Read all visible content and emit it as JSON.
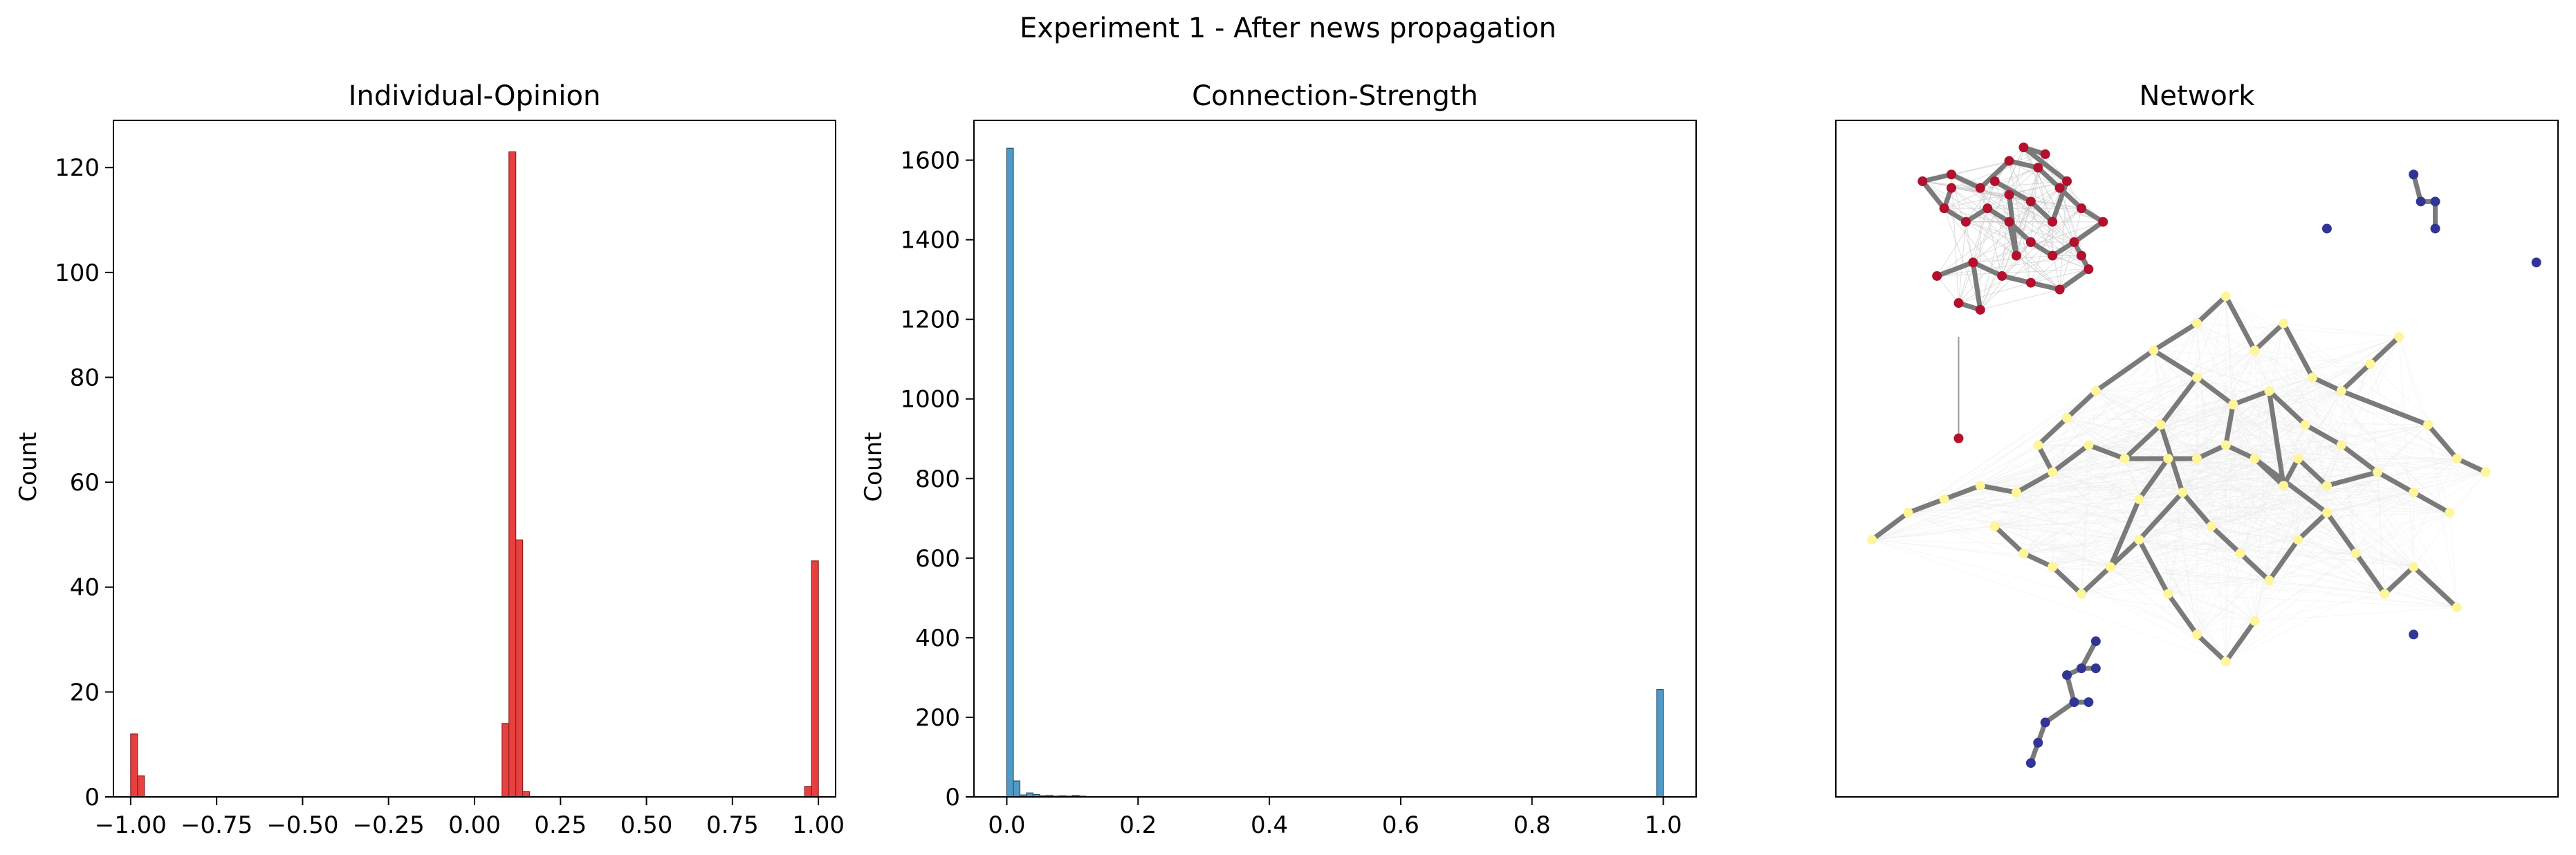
{
  "figure": {
    "suptitle": "Experiment 1 - After news propagation"
  },
  "chart_data": [
    {
      "type": "bar",
      "title": "Individual-Opinion",
      "xlabel": "",
      "ylabel": "Count",
      "xlim": [
        -1.05,
        1.05
      ],
      "ylim": [
        0,
        129
      ],
      "xticks": [
        -1.0,
        -0.75,
        -0.5,
        -0.25,
        0.0,
        0.25,
        0.5,
        0.75,
        1.0
      ],
      "xtick_labels": [
        "−1.00",
        "−0.75",
        "−0.50",
        "−0.25",
        "0.00",
        "0.25",
        "0.50",
        "0.75",
        "1.00"
      ],
      "yticks": [
        0,
        20,
        40,
        60,
        80,
        100,
        120
      ],
      "ytick_labels": [
        "0",
        "20",
        "40",
        "60",
        "80",
        "100",
        "120"
      ],
      "bin_width": 0.02,
      "bins": [
        {
          "x0": -1.0,
          "count": 12
        },
        {
          "x0": -0.98,
          "count": 4
        },
        {
          "x0": 0.08,
          "count": 14
        },
        {
          "x0": 0.1,
          "count": 123
        },
        {
          "x0": 0.12,
          "count": 49
        },
        {
          "x0": 0.14,
          "count": 1
        },
        {
          "x0": 0.96,
          "count": 2
        },
        {
          "x0": 0.98,
          "count": 45
        }
      ],
      "bar_color": "#e8403f",
      "edge_color": "#8a1f1f",
      "grid": false
    },
    {
      "type": "bar",
      "title": "Connection-Strength",
      "xlabel": "",
      "ylabel": "Count",
      "xlim": [
        -0.05,
        1.05
      ],
      "ylim": [
        0,
        1700
      ],
      "xticks": [
        0.0,
        0.2,
        0.4,
        0.6,
        0.8,
        1.0
      ],
      "xtick_labels": [
        "0.0",
        "0.2",
        "0.4",
        "0.6",
        "0.8",
        "1.0"
      ],
      "yticks": [
        0,
        200,
        400,
        600,
        800,
        1000,
        1200,
        1400,
        1600
      ],
      "ytick_labels": [
        "0",
        "200",
        "400",
        "600",
        "800",
        "1000",
        "1200",
        "1400",
        "1600"
      ],
      "bin_width": 0.01,
      "bins": [
        {
          "x0": 0.0,
          "count": 1630
        },
        {
          "x0": 0.01,
          "count": 40
        },
        {
          "x0": 0.02,
          "count": 5
        },
        {
          "x0": 0.03,
          "count": 10
        },
        {
          "x0": 0.04,
          "count": 6
        },
        {
          "x0": 0.05,
          "count": 3
        },
        {
          "x0": 0.06,
          "count": 4
        },
        {
          "x0": 0.07,
          "count": 2
        },
        {
          "x0": 0.08,
          "count": 3
        },
        {
          "x0": 0.09,
          "count": 2
        },
        {
          "x0": 0.1,
          "count": 4
        },
        {
          "x0": 0.11,
          "count": 2
        },
        {
          "x0": 0.99,
          "count": 270
        }
      ],
      "bar_color": "#4f9ac6",
      "edge_color": "#23506e",
      "grid": false
    },
    {
      "type": "scatter",
      "title": "Network",
      "xlabel": "",
      "ylabel": "",
      "axes_visible": false,
      "xlim": [
        0,
        1
      ],
      "ylim": [
        0,
        1
      ],
      "clusters": [
        {
          "color": "#b2102c",
          "edge_color": "#7a7a7a",
          "nodes": [
            [
              0.12,
              0.91
            ],
            [
              0.16,
              0.92
            ],
            [
              0.2,
              0.9
            ],
            [
              0.24,
              0.94
            ],
            [
              0.28,
              0.93
            ],
            [
              0.31,
              0.9
            ],
            [
              0.34,
              0.87
            ],
            [
              0.37,
              0.85
            ],
            [
              0.33,
              0.82
            ],
            [
              0.3,
              0.8
            ],
            [
              0.27,
              0.82
            ],
            [
              0.24,
              0.85
            ],
            [
              0.21,
              0.87
            ],
            [
              0.18,
              0.85
            ],
            [
              0.15,
              0.87
            ],
            [
              0.19,
              0.79
            ],
            [
              0.23,
              0.77
            ],
            [
              0.27,
              0.76
            ],
            [
              0.31,
              0.75
            ],
            [
              0.35,
              0.78
            ],
            [
              0.25,
              0.8
            ],
            [
              0.22,
              0.91
            ],
            [
              0.27,
              0.88
            ],
            [
              0.3,
              0.85
            ],
            [
              0.32,
              0.91
            ],
            [
              0.26,
              0.96
            ],
            [
              0.24,
              0.89
            ],
            [
              0.17,
              0.73
            ],
            [
              0.2,
              0.72
            ],
            [
              0.14,
              0.77
            ],
            [
              0.29,
              0.95
            ],
            [
              0.34,
              0.8
            ],
            [
              0.16,
              0.9
            ]
          ],
          "links": [
            [
              0,
              1
            ],
            [
              1,
              2
            ],
            [
              2,
              3
            ],
            [
              3,
              4
            ],
            [
              4,
              5
            ],
            [
              5,
              6
            ],
            [
              6,
              7
            ],
            [
              7,
              8
            ],
            [
              8,
              9
            ],
            [
              9,
              10
            ],
            [
              10,
              11
            ],
            [
              11,
              12
            ],
            [
              12,
              13
            ],
            [
              13,
              14
            ],
            [
              14,
              0
            ],
            [
              15,
              16
            ],
            [
              16,
              17
            ],
            [
              17,
              18
            ],
            [
              18,
              19
            ],
            [
              19,
              8
            ],
            [
              20,
              11
            ],
            [
              21,
              22
            ],
            [
              22,
              23
            ],
            [
              23,
              24
            ],
            [
              24,
              25
            ],
            [
              26,
              20
            ],
            [
              27,
              28
            ],
            [
              28,
              15
            ],
            [
              29,
              15
            ],
            [
              30,
              25
            ],
            [
              31,
              19
            ],
            [
              32,
              14
            ]
          ],
          "extra": [
            [
              0.17,
              0.53
            ],
            [
              0.17,
              0.68
            ]
          ]
        },
        {
          "color": "#fff59a",
          "edge_color": "#7a7a7a",
          "nodes": [
            [
              0.5,
              0.62
            ],
            [
              0.55,
              0.58
            ],
            [
              0.6,
              0.6
            ],
            [
              0.65,
              0.55
            ],
            [
              0.7,
              0.52
            ],
            [
              0.75,
              0.48
            ],
            [
              0.8,
              0.45
            ],
            [
              0.85,
              0.42
            ],
            [
              0.45,
              0.55
            ],
            [
              0.4,
              0.5
            ],
            [
              0.35,
              0.52
            ],
            [
              0.3,
              0.48
            ],
            [
              0.25,
              0.45
            ],
            [
              0.2,
              0.46
            ],
            [
              0.15,
              0.44
            ],
            [
              0.1,
              0.42
            ],
            [
              0.05,
              0.38
            ],
            [
              0.48,
              0.45
            ],
            [
              0.52,
              0.4
            ],
            [
              0.56,
              0.36
            ],
            [
              0.6,
              0.32
            ],
            [
              0.64,
              0.38
            ],
            [
              0.68,
              0.42
            ],
            [
              0.72,
              0.36
            ],
            [
              0.76,
              0.3
            ],
            [
              0.8,
              0.34
            ],
            [
              0.86,
              0.28
            ],
            [
              0.42,
              0.38
            ],
            [
              0.38,
              0.34
            ],
            [
              0.34,
              0.3
            ],
            [
              0.3,
              0.34
            ],
            [
              0.26,
              0.36
            ],
            [
              0.22,
              0.4
            ],
            [
              0.44,
              0.66
            ],
            [
              0.5,
              0.7
            ],
            [
              0.54,
              0.74
            ],
            [
              0.58,
              0.66
            ],
            [
              0.62,
              0.7
            ],
            [
              0.66,
              0.62
            ],
            [
              0.7,
              0.6
            ],
            [
              0.74,
              0.64
            ],
            [
              0.78,
              0.68
            ],
            [
              0.82,
              0.55
            ],
            [
              0.86,
              0.5
            ],
            [
              0.9,
              0.48
            ],
            [
              0.36,
              0.6
            ],
            [
              0.32,
              0.56
            ],
            [
              0.28,
              0.52
            ],
            [
              0.46,
              0.3
            ],
            [
              0.5,
              0.24
            ],
            [
              0.54,
              0.2
            ],
            [
              0.58,
              0.26
            ],
            [
              0.62,
              0.46
            ],
            [
              0.58,
              0.5
            ],
            [
              0.54,
              0.52
            ],
            [
              0.5,
              0.5
            ],
            [
              0.46,
              0.5
            ],
            [
              0.42,
              0.44
            ],
            [
              0.64,
              0.5
            ],
            [
              0.68,
              0.46
            ]
          ],
          "links": [
            [
              0,
              1
            ],
            [
              1,
              2
            ],
            [
              2,
              3
            ],
            [
              3,
              4
            ],
            [
              4,
              5
            ],
            [
              5,
              6
            ],
            [
              6,
              7
            ],
            [
              0,
              8
            ],
            [
              8,
              9
            ],
            [
              9,
              10
            ],
            [
              10,
              11
            ],
            [
              11,
              12
            ],
            [
              12,
              13
            ],
            [
              13,
              14
            ],
            [
              14,
              15
            ],
            [
              15,
              16
            ],
            [
              8,
              17
            ],
            [
              17,
              18
            ],
            [
              18,
              19
            ],
            [
              19,
              20
            ],
            [
              20,
              21
            ],
            [
              21,
              22
            ],
            [
              22,
              23
            ],
            [
              23,
              24
            ],
            [
              24,
              25
            ],
            [
              25,
              26
            ],
            [
              17,
              27
            ],
            [
              27,
              28
            ],
            [
              28,
              29
            ],
            [
              29,
              30
            ],
            [
              30,
              31
            ],
            [
              31,
              32
            ],
            [
              0,
              33
            ],
            [
              33,
              34
            ],
            [
              34,
              35
            ],
            [
              35,
              36
            ],
            [
              36,
              37
            ],
            [
              37,
              38
            ],
            [
              38,
              39
            ],
            [
              39,
              40
            ],
            [
              40,
              41
            ],
            [
              39,
              42
            ],
            [
              42,
              43
            ],
            [
              43,
              44
            ],
            [
              33,
              45
            ],
            [
              45,
              46
            ],
            [
              46,
              47
            ],
            [
              27,
              48
            ],
            [
              48,
              49
            ],
            [
              49,
              50
            ],
            [
              50,
              51
            ],
            [
              2,
              52
            ],
            [
              52,
              53
            ],
            [
              53,
              54
            ],
            [
              54,
              55
            ],
            [
              55,
              56
            ],
            [
              56,
              57
            ],
            [
              52,
              58
            ],
            [
              58,
              59
            ],
            [
              59,
              5
            ],
            [
              54,
              1
            ],
            [
              56,
              9
            ],
            [
              53,
              22
            ],
            [
              47,
              11
            ],
            [
              57,
              28
            ]
          ]
        },
        {
          "color": "#313695",
          "edge_color": "#7a7a7a",
          "nodes": [
            [
              0.8,
              0.92
            ],
            [
              0.81,
              0.88
            ],
            [
              0.83,
              0.88
            ],
            [
              0.83,
              0.84
            ],
            [
              0.68,
              0.84
            ],
            [
              0.97,
              0.79
            ]
          ],
          "links": [
            [
              0,
              1
            ],
            [
              1,
              2
            ],
            [
              2,
              3
            ]
          ]
        },
        {
          "color": "#313695",
          "edge_color": "#7a7a7a",
          "nodes": [
            [
              0.36,
              0.23
            ],
            [
              0.34,
              0.19
            ],
            [
              0.36,
              0.19
            ],
            [
              0.32,
              0.18
            ],
            [
              0.33,
              0.14
            ],
            [
              0.35,
              0.14
            ],
            [
              0.29,
              0.11
            ],
            [
              0.28,
              0.08
            ],
            [
              0.27,
              0.05
            ],
            [
              0.8,
              0.24
            ]
          ],
          "links": [
            [
              0,
              1
            ],
            [
              1,
              2
            ],
            [
              1,
              3
            ],
            [
              3,
              4
            ],
            [
              4,
              5
            ],
            [
              4,
              6
            ],
            [
              6,
              7
            ],
            [
              7,
              8
            ]
          ]
        }
      ]
    }
  ]
}
